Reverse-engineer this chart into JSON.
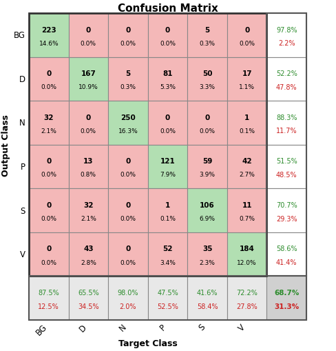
{
  "title": "Confusion Matrix",
  "classes": [
    "BG",
    "D",
    "N",
    "P",
    "S",
    "V"
  ],
  "matrix": [
    [
      223,
      0,
      0,
      0,
      5,
      0
    ],
    [
      0,
      167,
      5,
      81,
      50,
      17
    ],
    [
      32,
      0,
      250,
      0,
      0,
      1
    ],
    [
      0,
      13,
      0,
      121,
      59,
      42
    ],
    [
      0,
      32,
      0,
      1,
      106,
      11
    ],
    [
      0,
      43,
      0,
      52,
      35,
      184
    ]
  ],
  "matrix_pct": [
    [
      "14.6%",
      "0.0%",
      "0.0%",
      "0.0%",
      "0.3%",
      "0.0%"
    ],
    [
      "0.0%",
      "10.9%",
      "0.3%",
      "5.3%",
      "3.3%",
      "1.1%"
    ],
    [
      "2.1%",
      "0.0%",
      "16.3%",
      "0.0%",
      "0.0%",
      "0.1%"
    ],
    [
      "0.0%",
      "0.8%",
      "0.0%",
      "7.9%",
      "3.9%",
      "2.7%"
    ],
    [
      "0.0%",
      "2.1%",
      "0.0%",
      "0.1%",
      "6.9%",
      "0.7%"
    ],
    [
      "0.0%",
      "2.8%",
      "0.0%",
      "3.4%",
      "2.3%",
      "12.0%"
    ]
  ],
  "row_green": [
    "97.8%",
    "52.2%",
    "88.3%",
    "51.5%",
    "70.7%",
    "58.6%"
  ],
  "row_red": [
    "2.2%",
    "47.8%",
    "11.7%",
    "48.5%",
    "29.3%",
    "41.4%"
  ],
  "col_green": [
    "87.5%",
    "65.5%",
    "98.0%",
    "47.5%",
    "41.6%",
    "72.2%"
  ],
  "col_red": [
    "12.5%",
    "34.5%",
    "2.0%",
    "52.5%",
    "58.4%",
    "27.8%"
  ],
  "overall_green": "68.7%",
  "overall_red": "31.3%",
  "color_diag": "#b2dfb2",
  "color_off": "#f4b8b8",
  "color_summary_row": "#e8e8e8",
  "color_summary_overall": "#d0d0d0",
  "color_summary_col": "#ffffff",
  "green_text": "#2d8c2d",
  "red_text": "#cc2222",
  "xlabel": "Target Class",
  "ylabel": "Output Class"
}
